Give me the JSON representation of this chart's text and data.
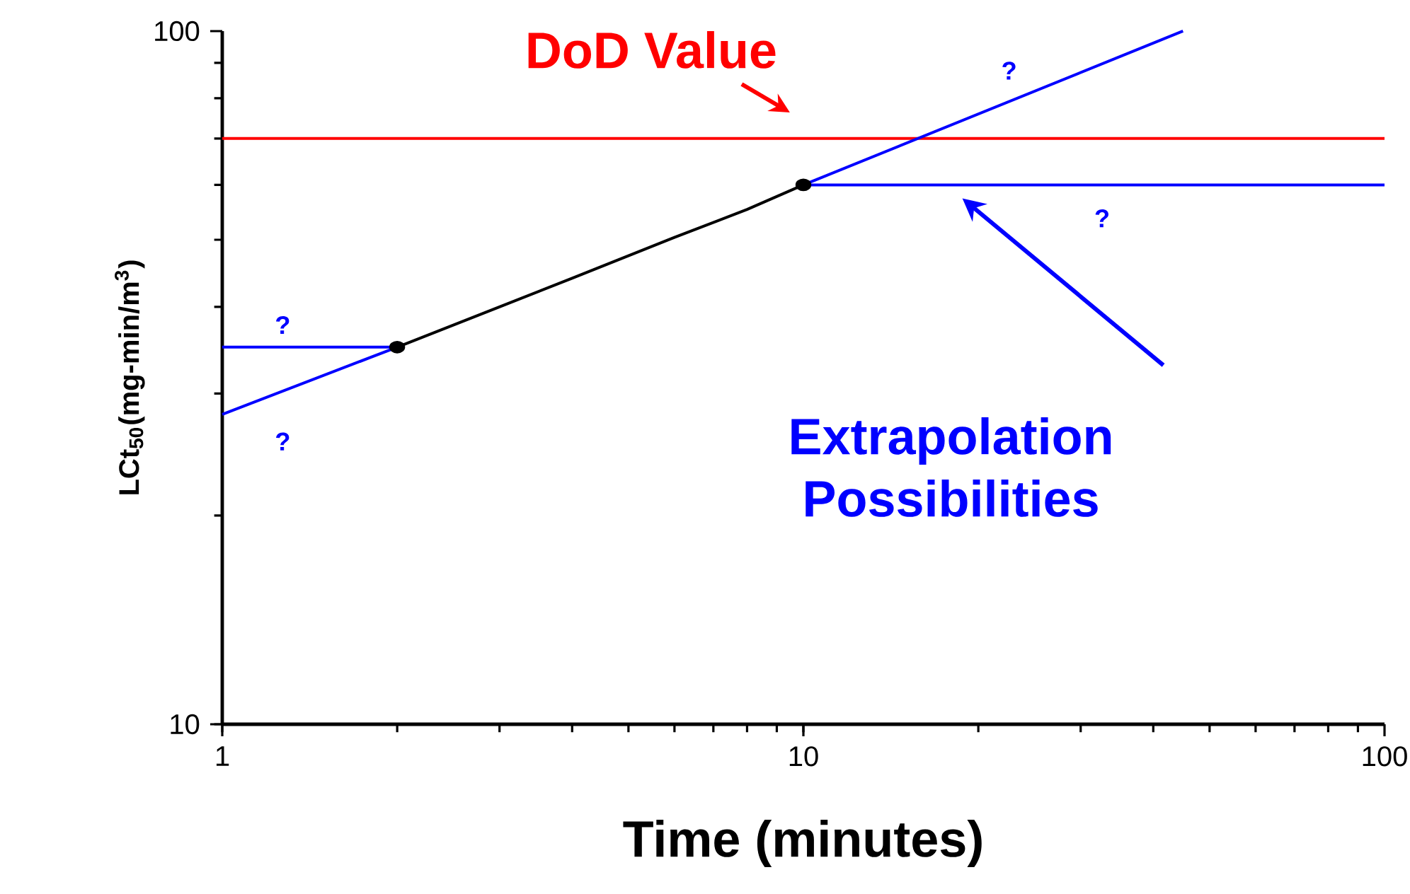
{
  "chart_data": {
    "type": "line",
    "xlabel": "Time (minutes)",
    "ylabel": "LCt$_{50}$(mg-min/m$^{3}$)",
    "log": "xy",
    "xlim": [
      1,
      100
    ],
    "ylim": [
      10,
      100
    ],
    "xticks": [
      1,
      10,
      100
    ],
    "yticks": [
      10,
      100
    ],
    "grid": false,
    "line_style": "solid",
    "series": [
      {
        "color": "#000000",
        "x": [
          2,
          3,
          4,
          6,
          8,
          10
        ],
        "values": [
          35,
          40,
          44,
          50.4,
          55.3,
          60
        ],
        "marker": "none"
      },
      {
        "type": "scatter",
        "color": "#000000",
        "x": [
          2,
          10
        ],
        "values": [
          35,
          60
        ],
        "marker": "circle"
      },
      {
        "color": "#0000ff",
        "x": [
          1,
          2
        ],
        "values": [
          35,
          35
        ],
        "marker": "none"
      },
      {
        "color": "#0000ff",
        "x": [
          1,
          2
        ],
        "values": [
          28,
          35
        ],
        "marker": "none"
      },
      {
        "color": "#0000ff",
        "x": [
          10,
          100
        ],
        "values": [
          60,
          60
        ],
        "marker": "none"
      },
      {
        "color": "#0000ff",
        "x": [
          10,
          45
        ],
        "values": [
          60,
          100
        ],
        "marker": "none"
      }
    ],
    "ref_lines": [
      {
        "axis": "y",
        "value": 70,
        "color": "#ff0000"
      }
    ],
    "annotations": [
      "DoD Value",
      "Extrapolation Possibilities",
      "?",
      "?",
      "?",
      "?"
    ]
  }
}
